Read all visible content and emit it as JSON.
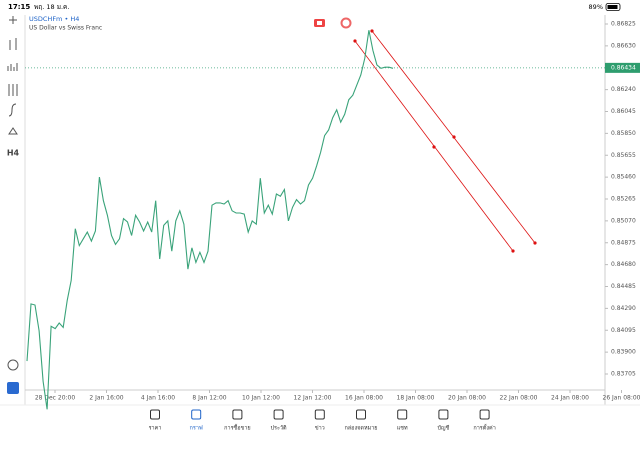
{
  "status_bar": {
    "time": "17:15",
    "date": "พฤ. 18 ม.ค.",
    "battery": "89%"
  },
  "chart": {
    "symbol": "USDCHFm • H4",
    "description": "US Dollar vs Swiss Franc",
    "toolbar_timeframe": "H4",
    "current_price": 0.86434,
    "yticks": [
      0.86825,
      0.8663,
      0.86435,
      0.8624,
      0.86045,
      0.8585,
      0.85655,
      0.8546,
      0.85265,
      0.8507,
      0.84875,
      0.8468,
      0.84485,
      0.8429,
      0.84095,
      0.839,
      0.83705
    ],
    "ytick_labels": [
      "0.86825",
      "0.86630",
      "0.86435",
      "0.86240",
      "0.86045",
      "0.85850",
      "0.85655",
      "0.85460",
      "0.85265",
      "0.85070",
      "0.84875",
      "0.84680",
      "0.84485",
      "0.84290",
      "0.84095",
      "0.83900",
      "0.83705"
    ],
    "xticks": [
      "28 Dec 20:00",
      "2 Jan 16:00",
      "4 Jan 16:00",
      "8 Jan 12:00",
      "10 Jan 12:00",
      "12 Jan 12:00",
      "16 Jan 08:00",
      "18 Jan 08:00",
      "20 Jan 08:00",
      "22 Jan 08:00",
      "24 Jan 08:00",
      "26 Jan 08:00"
    ],
    "prices": [
      0.8382,
      0.8433,
      0.8432,
      0.8409,
      0.8364,
      0.8339,
      0.8413,
      0.8411,
      0.8416,
      0.8412,
      0.8436,
      0.8454,
      0.85,
      0.8485,
      0.8491,
      0.8497,
      0.8489,
      0.8498,
      0.8546,
      0.8525,
      0.8512,
      0.8494,
      0.8486,
      0.8491,
      0.8509,
      0.8506,
      0.8494,
      0.8512,
      0.8506,
      0.8498,
      0.8506,
      0.8497,
      0.8525,
      0.8473,
      0.8503,
      0.8507,
      0.848,
      0.8507,
      0.8516,
      0.8504,
      0.8464,
      0.8483,
      0.847,
      0.8479,
      0.847,
      0.848,
      0.8521,
      0.8523,
      0.8523,
      0.8522,
      0.8525,
      0.8516,
      0.8514,
      0.8514,
      0.8513,
      0.8497,
      0.8507,
      0.8504,
      0.8545,
      0.8514,
      0.8521,
      0.8513,
      0.8531,
      0.8529,
      0.8535,
      0.8507,
      0.8519,
      0.8526,
      0.8522,
      0.8525,
      0.8539,
      0.8545,
      0.8556,
      0.8568,
      0.8583,
      0.8588,
      0.8599,
      0.8606,
      0.8595,
      0.8602,
      0.8615,
      0.8619,
      0.8628,
      0.8637,
      0.8652,
      0.8677,
      0.8659,
      0.8646,
      0.8643,
      0.8644,
      0.8644,
      0.8643
    ]
  },
  "tabs": [
    "ราคา",
    "กราฟ",
    "การซื้อขาย",
    "ประวัติ",
    "ข่าว",
    "กล่องจดหมาย",
    "แชท",
    "บัญชี",
    "การตั้งค่า"
  ]
}
